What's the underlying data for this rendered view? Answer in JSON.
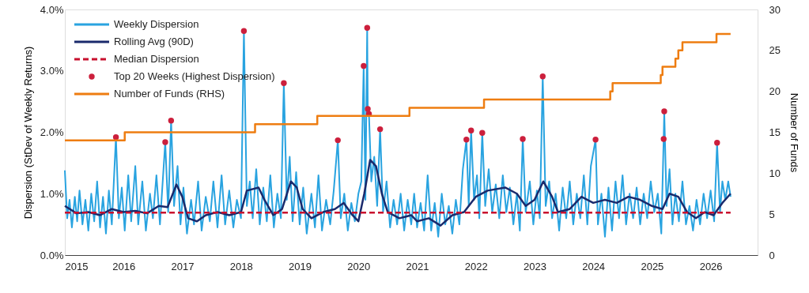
{
  "chart_data": {
    "type": "line",
    "ylabel": "Dispersion (StDev of Weekly Returns)",
    "y2label": "Number of Funds",
    "xlim": [
      2015,
      2026.8
    ],
    "xticks": [
      2015,
      2016,
      2017,
      2018,
      2019,
      2020,
      2021,
      2022,
      2023,
      2024,
      2025,
      2026
    ],
    "ylim": [
      0,
      4
    ],
    "yticks": [
      {
        "value": 0,
        "label": "0.0%"
      },
      {
        "value": 1,
        "label": "1.0%"
      },
      {
        "value": 2,
        "label": "2.0%"
      },
      {
        "value": 3,
        "label": "3.0%"
      },
      {
        "value": 4,
        "label": "4.0%"
      }
    ],
    "y2lim": [
      0,
      30
    ],
    "y2ticks": [
      0,
      5,
      10,
      15,
      20,
      25,
      30
    ],
    "grid": false,
    "legend": "top left",
    "series": [
      {
        "name": "Weekly Dispersion",
        "color": "#29a3e0",
        "line_style": "solid",
        "x": [
          2015.0,
          2015.04,
          2015.08,
          2015.12,
          2015.17,
          2015.21,
          2015.25,
          2015.3,
          2015.35,
          2015.4,
          2015.45,
          2015.5,
          2015.55,
          2015.6,
          2015.65,
          2015.7,
          2015.75,
          2015.8,
          2015.87,
          2015.92,
          2015.97,
          2016.02,
          2016.08,
          2016.13,
          2016.2,
          2016.25,
          2016.32,
          2016.38,
          2016.45,
          2016.5,
          2016.56,
          2016.62,
          2016.71,
          2016.76,
          2016.81,
          2016.86,
          2016.92,
          2016.97,
          2017.02,
          2017.08,
          2017.15,
          2017.2,
          2017.27,
          2017.33,
          2017.4,
          2017.47,
          2017.53,
          2017.6,
          2017.67,
          2017.73,
          2017.8,
          2017.87,
          2017.93,
          2018.0,
          2018.05,
          2018.1,
          2018.15,
          2018.2,
          2018.26,
          2018.32,
          2018.38,
          2018.44,
          2018.5,
          2018.56,
          2018.62,
          2018.68,
          2018.73,
          2018.78,
          2018.83,
          2018.88,
          2018.94,
          2019.0,
          2019.06,
          2019.12,
          2019.2,
          2019.26,
          2019.32,
          2019.38,
          2019.45,
          2019.52,
          2019.58,
          2019.65,
          2019.7,
          2019.76,
          2019.82,
          2019.88,
          2019.94,
          2020.0,
          2020.05,
          2020.09,
          2020.12,
          2020.15,
          2020.16,
          2020.18,
          2020.22,
          2020.27,
          2020.32,
          2020.37,
          2020.42,
          2020.48,
          2020.54,
          2020.6,
          2020.66,
          2020.72,
          2020.78,
          2020.84,
          2020.9,
          2020.95,
          2021.0,
          2021.06,
          2021.12,
          2021.18,
          2021.24,
          2021.3,
          2021.36,
          2021.42,
          2021.48,
          2021.54,
          2021.6,
          2021.66,
          2021.72,
          2021.78,
          2021.84,
          2021.88,
          2021.92,
          2021.97,
          2022.02,
          2022.06,
          2022.11,
          2022.16,
          2022.22,
          2022.28,
          2022.34,
          2022.4,
          2022.46,
          2022.52,
          2022.58,
          2022.64,
          2022.7,
          2022.75,
          2022.8,
          2022.85,
          2022.92,
          2022.98,
          2023.04,
          2023.09,
          2023.14,
          2023.19,
          2023.25,
          2023.3,
          2023.36,
          2023.42,
          2023.48,
          2023.54,
          2023.6,
          2023.66,
          2023.72,
          2023.78,
          2023.84,
          2023.9,
          2023.96,
          2024.04,
          2024.08,
          2024.14,
          2024.2,
          2024.26,
          2024.32,
          2024.38,
          2024.44,
          2024.5,
          2024.56,
          2024.62,
          2024.68,
          2024.74,
          2024.8,
          2024.86,
          2024.92,
          2024.98,
          2025.04,
          2025.1,
          2025.16,
          2025.2,
          2025.21,
          2025.25,
          2025.3,
          2025.35,
          2025.4,
          2025.46,
          2025.52,
          2025.58,
          2025.64,
          2025.7,
          2025.76,
          2025.82,
          2025.88,
          2025.94,
          2026.0,
          2026.06,
          2026.11,
          2026.16,
          2026.2,
          2026.25,
          2026.3,
          2026.34
        ],
        "values": [
          1.38,
          0.6,
          0.9,
          0.45,
          0.95,
          0.55,
          1.05,
          0.5,
          0.9,
          0.4,
          1.0,
          0.55,
          1.2,
          0.45,
          0.95,
          0.35,
          1.05,
          0.5,
          1.92,
          0.6,
          1.1,
          0.4,
          1.3,
          0.55,
          1.45,
          0.5,
          1.2,
          0.4,
          1.0,
          0.6,
          1.3,
          0.5,
          1.84,
          0.7,
          2.19,
          0.8,
          1.45,
          0.5,
          1.1,
          0.35,
          0.9,
          0.5,
          1.2,
          0.4,
          0.95,
          0.55,
          1.2,
          0.45,
          1.3,
          0.5,
          1.05,
          0.45,
          0.9,
          0.6,
          3.65,
          0.8,
          1.2,
          0.6,
          1.4,
          0.5,
          1.1,
          0.55,
          1.3,
          0.45,
          1.0,
          0.6,
          2.8,
          0.9,
          1.6,
          0.55,
          1.35,
          0.5,
          1.1,
          0.35,
          1.0,
          0.45,
          1.3,
          0.4,
          0.9,
          0.5,
          1.05,
          1.87,
          0.6,
          1.0,
          0.4,
          0.85,
          0.55,
          1.0,
          1.2,
          3.08,
          0.9,
          3.7,
          2.38,
          2.3,
          1.2,
          1.6,
          0.8,
          2.05,
          0.7,
          1.2,
          0.45,
          0.9,
          0.5,
          1.0,
          0.4,
          0.9,
          0.5,
          1.0,
          0.45,
          0.85,
          0.4,
          1.3,
          0.4,
          0.85,
          0.3,
          1.0,
          0.5,
          0.8,
          0.35,
          0.9,
          0.5,
          1.4,
          1.88,
          0.8,
          2.03,
          0.9,
          1.3,
          0.6,
          1.99,
          0.8,
          1.4,
          0.7,
          1.15,
          0.6,
          1.3,
          0.7,
          1.1,
          0.5,
          1.0,
          0.4,
          1.89,
          0.7,
          1.2,
          0.5,
          1.05,
          0.6,
          2.91,
          0.8,
          1.2,
          0.6,
          1.0,
          0.4,
          1.1,
          0.6,
          1.2,
          0.5,
          1.0,
          0.6,
          1.3,
          0.5,
          1.45,
          1.88,
          0.5,
          1.0,
          0.3,
          1.1,
          0.4,
          1.2,
          0.6,
          1.3,
          0.5,
          1.0,
          0.6,
          1.1,
          0.5,
          1.0,
          0.6,
          1.2,
          0.7,
          1.0,
          0.35,
          1.89,
          2.34,
          0.8,
          1.4,
          0.5,
          1.0,
          0.55,
          1.2,
          0.5,
          0.8,
          0.4,
          0.9,
          0.5,
          1.0,
          0.6,
          1.05,
          0.55,
          1.83,
          0.7,
          1.2,
          0.9,
          1.2,
          0.95
        ]
      },
      {
        "name": "Rolling Avg (90D)",
        "color": "#1a2a6c",
        "line_style": "solid",
        "x": [
          2015.0,
          2015.2,
          2015.4,
          2015.6,
          2015.8,
          2016.0,
          2016.2,
          2016.4,
          2016.6,
          2016.75,
          2016.9,
          2017.0,
          2017.1,
          2017.25,
          2017.4,
          2017.6,
          2017.8,
          2018.0,
          2018.1,
          2018.3,
          2018.4,
          2018.55,
          2018.7,
          2018.85,
          2018.95,
          2019.05,
          2019.2,
          2019.4,
          2019.6,
          2019.75,
          2019.9,
          2020.0,
          2020.1,
          2020.2,
          2020.3,
          2020.4,
          2020.5,
          2020.7,
          2020.9,
          2021.0,
          2021.2,
          2021.4,
          2021.6,
          2021.8,
          2022.0,
          2022.2,
          2022.5,
          2022.7,
          2022.85,
          2023.0,
          2023.15,
          2023.3,
          2023.4,
          2023.6,
          2023.8,
          2024.0,
          2024.2,
          2024.4,
          2024.6,
          2024.8,
          2025.0,
          2025.18,
          2025.3,
          2025.45,
          2025.6,
          2025.75,
          2025.9,
          2026.05,
          2026.2,
          2026.34
        ],
        "values": [
          0.8,
          0.68,
          0.7,
          0.65,
          0.75,
          0.7,
          0.72,
          0.68,
          0.8,
          0.78,
          1.15,
          0.95,
          0.6,
          0.55,
          0.65,
          0.7,
          0.65,
          0.7,
          1.05,
          1.1,
          0.9,
          0.65,
          0.75,
          1.2,
          1.1,
          0.75,
          0.6,
          0.7,
          0.75,
          0.85,
          0.65,
          0.55,
          1.0,
          1.55,
          1.45,
          1.0,
          0.7,
          0.6,
          0.65,
          0.55,
          0.6,
          0.48,
          0.65,
          0.7,
          0.95,
          1.05,
          1.1,
          1.0,
          0.8,
          0.9,
          1.2,
          0.95,
          0.7,
          0.75,
          0.95,
          0.85,
          0.9,
          0.85,
          0.95,
          0.9,
          0.8,
          0.75,
          1.0,
          0.95,
          0.7,
          0.6,
          0.7,
          0.65,
          0.85,
          1.0
        ]
      },
      {
        "name": "Median Dispersion",
        "color": "#c8102e",
        "line_style": "dashed",
        "x": [
          2015,
          2026.34
        ],
        "values": [
          0.69,
          0.69
        ]
      },
      {
        "name": "Top 20 Weeks (Highest Dispersion)",
        "type": "scatter",
        "marker": "circle",
        "color": "#cc1f3c",
        "x": [
          2015.87,
          2016.71,
          2016.81,
          2018.05,
          2018.73,
          2019.65,
          2020.09,
          2020.15,
          2020.16,
          2020.18,
          2020.37,
          2021.84,
          2021.92,
          2022.11,
          2022.8,
          2023.14,
          2024.04,
          2025.2,
          2025.21,
          2026.11
        ],
        "values": [
          1.92,
          1.84,
          2.19,
          3.65,
          2.8,
          1.87,
          3.08,
          3.7,
          2.38,
          2.3,
          2.05,
          1.88,
          2.03,
          1.99,
          1.89,
          2.91,
          1.88,
          1.89,
          2.34,
          1.83
        ]
      },
      {
        "name": "Number of Funds (RHS)",
        "type": "step",
        "axis": "y2",
        "color": "#ee7d11",
        "line_style": "solid",
        "x": [
          2015,
          2016.02,
          2018.24,
          2019.3,
          2020.87,
          2022.14,
          2024.29,
          2024.33,
          2025.15,
          2025.18,
          2025.4,
          2025.45,
          2025.52,
          2026.1,
          2026.34
        ],
        "values": [
          14,
          15,
          16,
          17,
          18,
          19,
          20,
          21,
          22,
          23,
          24,
          25,
          26,
          27,
          27
        ]
      }
    ]
  }
}
